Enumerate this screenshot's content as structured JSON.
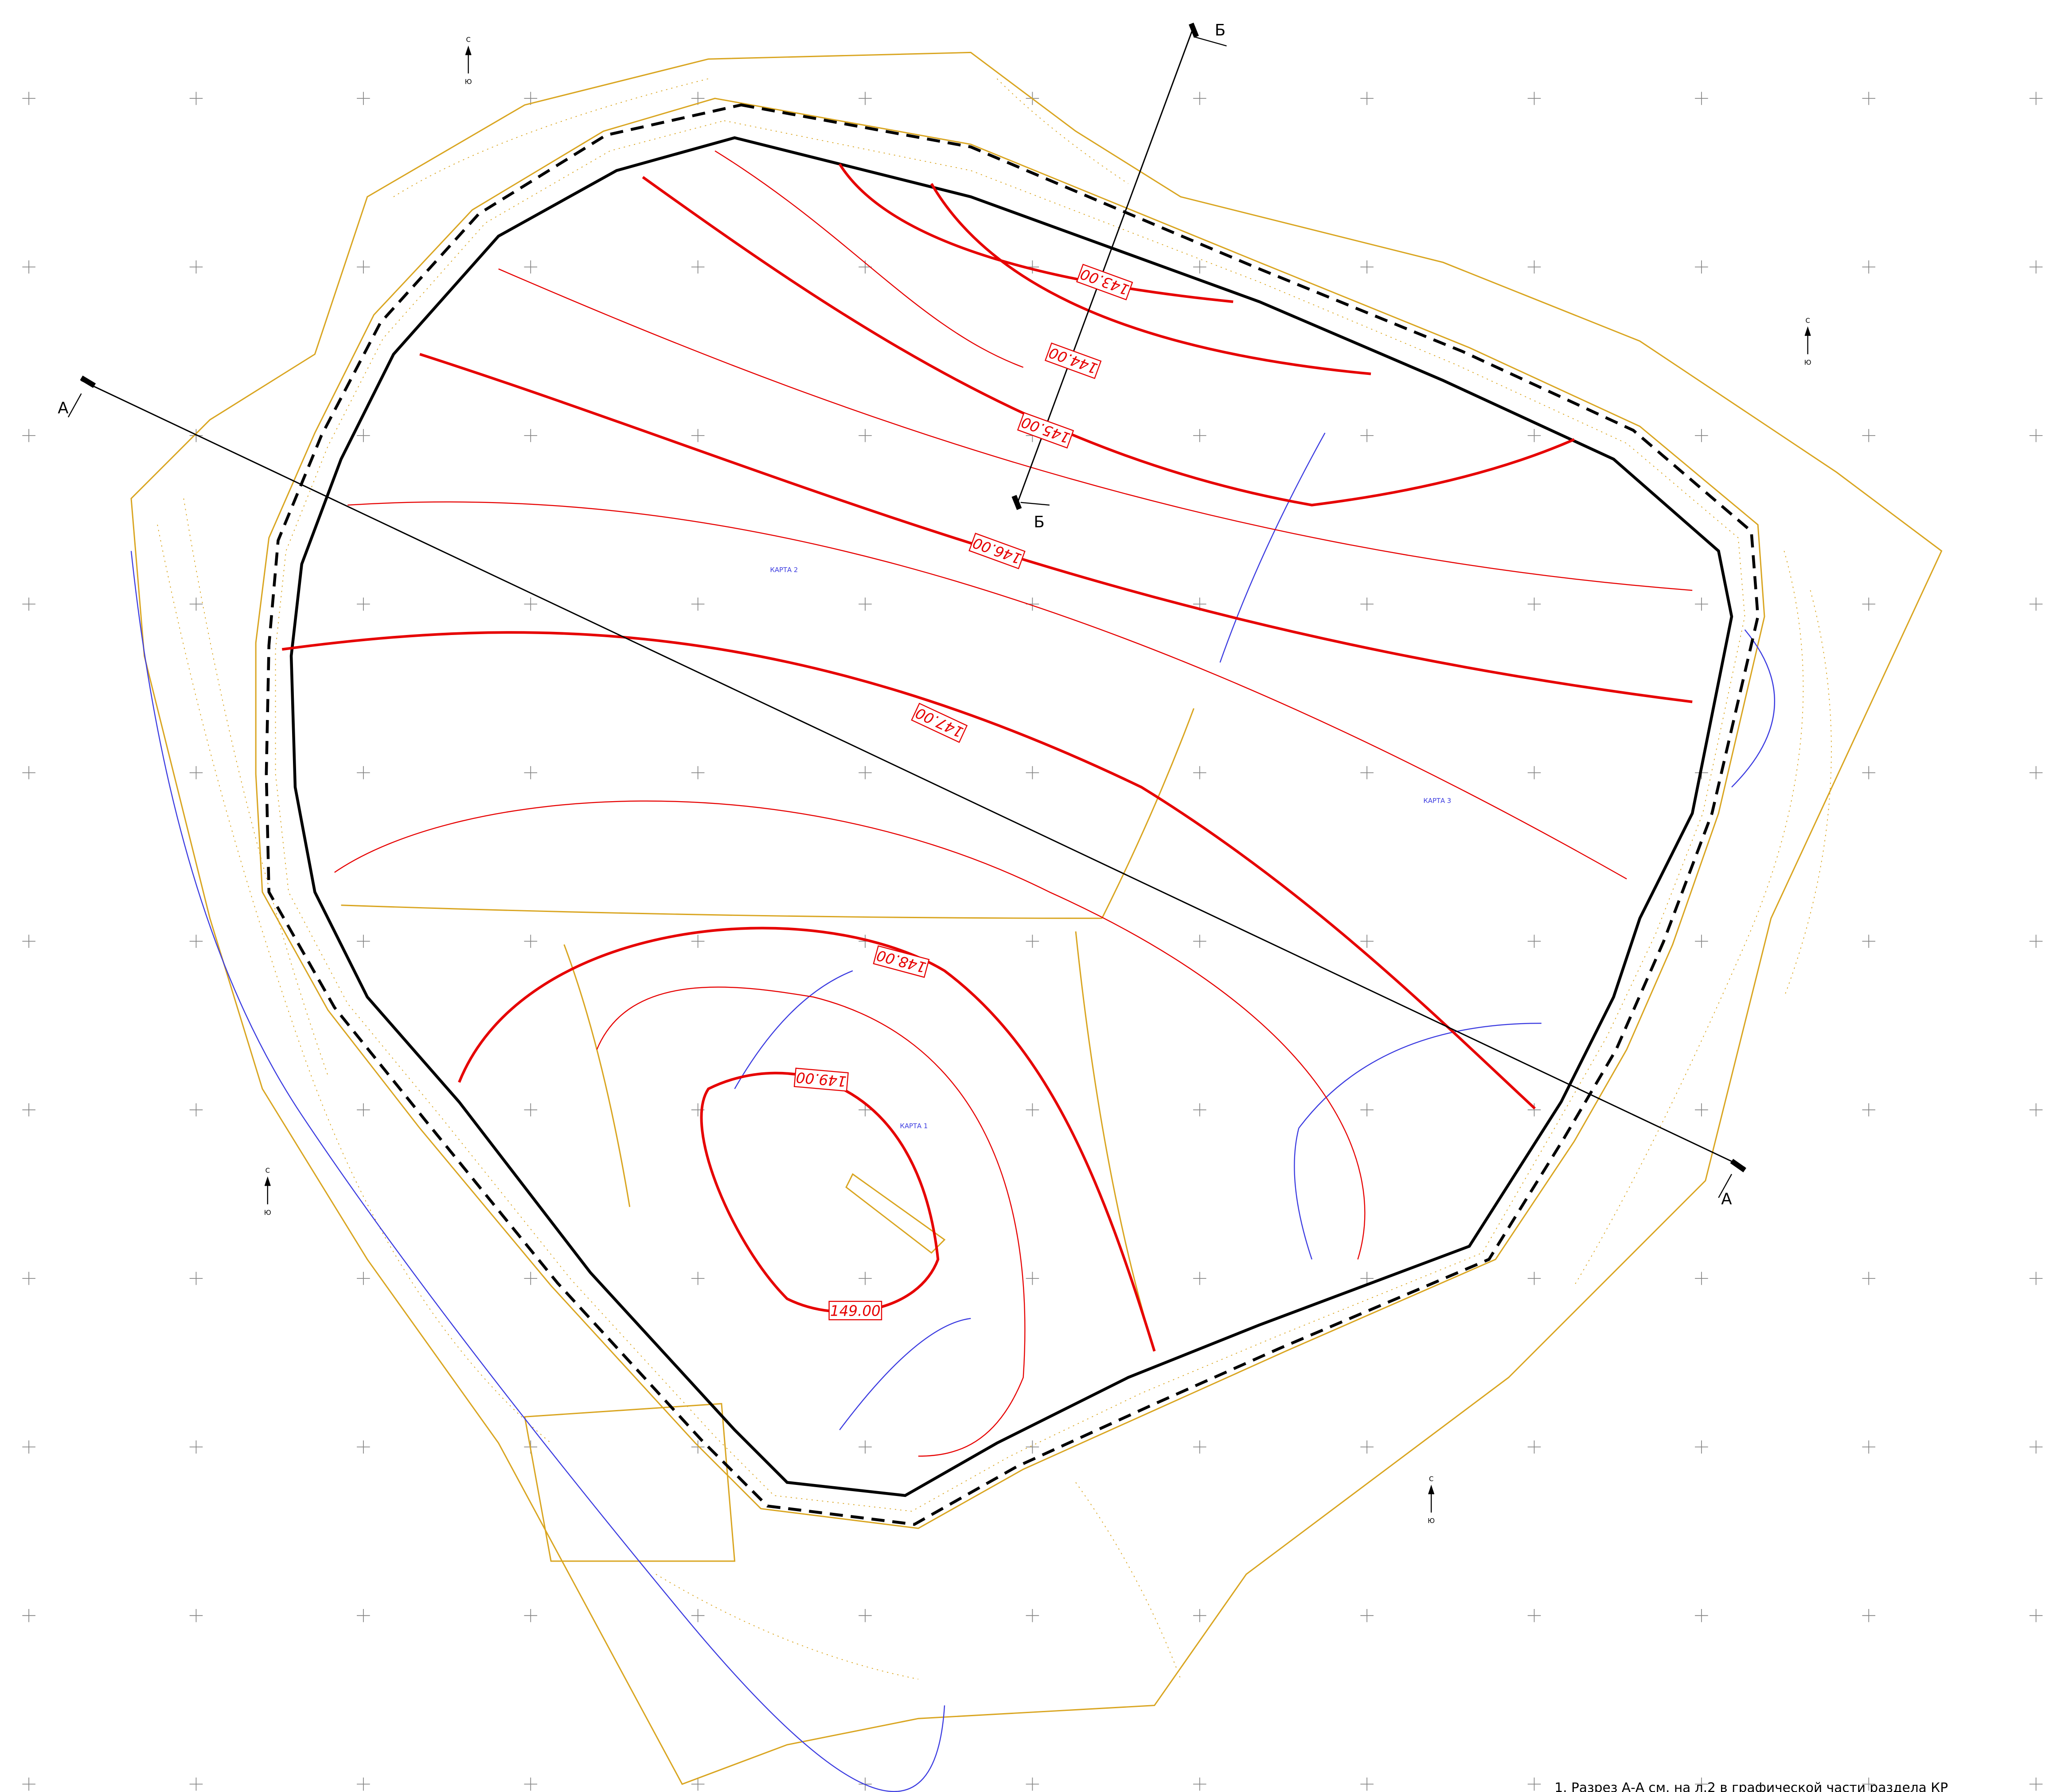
{
  "sections": {
    "a": "А",
    "b": "Б"
  },
  "contours": [
    "143.00",
    "144.00",
    "145.00",
    "146.00",
    "147.00",
    "148.00",
    "149.00",
    "149.00"
  ],
  "maps": [
    "КАРТА 1",
    "КАРТА 2",
    "КАРТА 3"
  ],
  "north": {
    "n": "С",
    "s": "Ю"
  },
  "note": "1. Разрез А-А см. на л.2 в графической части раздела КР"
}
